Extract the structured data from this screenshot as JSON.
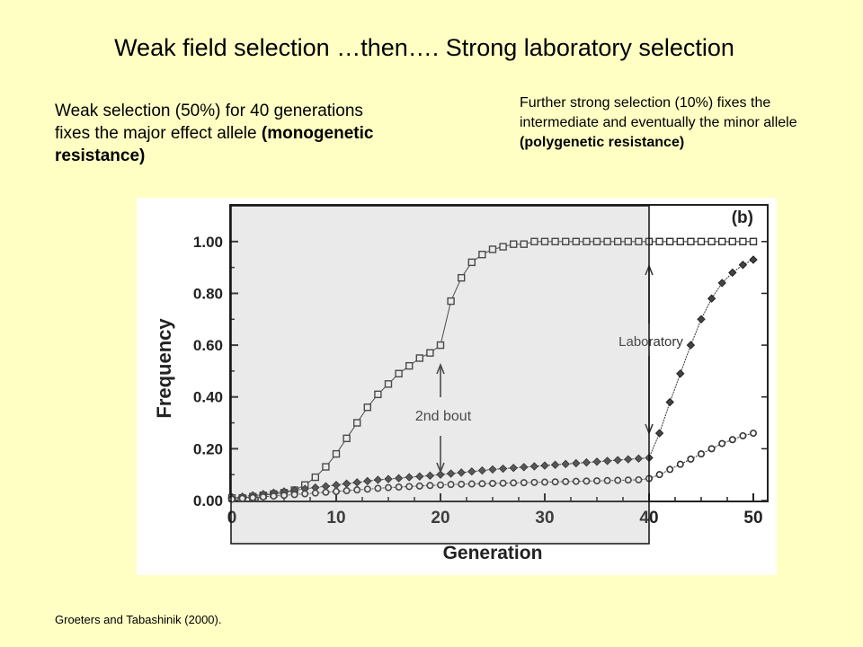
{
  "slide": {
    "title": "Weak field selection …then…. Strong laboratory selection",
    "left_note": "Weak selection (50%) for 40 generations fixes the major effect allele ",
    "left_note_bold": "(monogenetic resistance)",
    "right_note": "Further strong selection (10%) fixes the intermediate and eventually the minor allele ",
    "right_note_bold": "(polygenetic resistance)",
    "credit": "Groeters and Tabashinik (2000)."
  },
  "chart_data": {
    "type": "line",
    "panel_label": "(b)",
    "xlabel": "Generation",
    "ylabel": "Frequency",
    "xlim": [
      0,
      50
    ],
    "ylim": [
      0,
      1.1
    ],
    "xticks": [
      0,
      10,
      20,
      30,
      40,
      50
    ],
    "yticks": [
      0.0,
      0.2,
      0.4,
      0.6,
      0.8,
      1.0
    ],
    "ytick_labels": [
      "0.00",
      "0.20",
      "0.40",
      "0.60",
      "0.80",
      "1.00"
    ],
    "annotations": {
      "second_bout": "2nd bout",
      "laboratory": "Laboratory"
    },
    "series": [
      {
        "marker": "square",
        "x": [
          0,
          1,
          2,
          3,
          4,
          5,
          6,
          7,
          8,
          9,
          10,
          11,
          12,
          13,
          14,
          15,
          16,
          17,
          18,
          19,
          20,
          21,
          22,
          23,
          24,
          25,
          26,
          27,
          28,
          29,
          30,
          31,
          32,
          33,
          34,
          35,
          36,
          37,
          38,
          39,
          40,
          41,
          42,
          43,
          44,
          45,
          46,
          47,
          48,
          49,
          50
        ],
        "y": [
          0.01,
          0.01,
          0.015,
          0.02,
          0.025,
          0.03,
          0.04,
          0.06,
          0.09,
          0.13,
          0.18,
          0.24,
          0.3,
          0.36,
          0.41,
          0.45,
          0.49,
          0.52,
          0.55,
          0.57,
          0.6,
          0.77,
          0.86,
          0.92,
          0.95,
          0.97,
          0.98,
          0.99,
          0.99,
          1.0,
          1.0,
          1.0,
          1.0,
          1.0,
          1.0,
          1.0,
          1.0,
          1.0,
          1.0,
          1.0,
          1.0,
          1.0,
          1.0,
          1.0,
          1.0,
          1.0,
          1.0,
          1.0,
          1.0,
          1.0,
          1.0
        ]
      },
      {
        "marker": "filled-diamond",
        "x": [
          0,
          1,
          2,
          3,
          4,
          5,
          6,
          7,
          8,
          9,
          10,
          11,
          12,
          13,
          14,
          15,
          16,
          17,
          18,
          19,
          20,
          21,
          22,
          23,
          24,
          25,
          26,
          27,
          28,
          29,
          30,
          31,
          32,
          33,
          34,
          35,
          36,
          37,
          38,
          39,
          40,
          41,
          42,
          43,
          44,
          45,
          46,
          47,
          48,
          49,
          50
        ],
        "y": [
          0.01,
          0.015,
          0.02,
          0.025,
          0.03,
          0.035,
          0.04,
          0.045,
          0.05,
          0.055,
          0.06,
          0.065,
          0.07,
          0.075,
          0.08,
          0.083,
          0.086,
          0.09,
          0.093,
          0.096,
          0.1,
          0.104,
          0.108,
          0.112,
          0.116,
          0.12,
          0.123,
          0.126,
          0.129,
          0.132,
          0.135,
          0.138,
          0.141,
          0.144,
          0.147,
          0.15,
          0.153,
          0.156,
          0.159,
          0.162,
          0.165,
          0.26,
          0.38,
          0.49,
          0.6,
          0.7,
          0.78,
          0.84,
          0.88,
          0.91,
          0.93
        ]
      },
      {
        "marker": "open-circle",
        "x": [
          0,
          1,
          2,
          3,
          4,
          5,
          6,
          7,
          8,
          9,
          10,
          11,
          12,
          13,
          14,
          15,
          16,
          17,
          18,
          19,
          20,
          21,
          22,
          23,
          24,
          25,
          26,
          27,
          28,
          29,
          30,
          31,
          32,
          33,
          34,
          35,
          36,
          37,
          38,
          39,
          40,
          41,
          42,
          43,
          44,
          45,
          46,
          47,
          48,
          49,
          50
        ],
        "y": [
          0.005,
          0.008,
          0.011,
          0.014,
          0.017,
          0.02,
          0.023,
          0.026,
          0.029,
          0.032,
          0.035,
          0.038,
          0.041,
          0.044,
          0.047,
          0.05,
          0.052,
          0.054,
          0.056,
          0.058,
          0.06,
          0.062,
          0.063,
          0.064,
          0.065,
          0.066,
          0.067,
          0.068,
          0.069,
          0.07,
          0.071,
          0.072,
          0.073,
          0.074,
          0.075,
          0.076,
          0.077,
          0.078,
          0.079,
          0.08,
          0.085,
          0.1,
          0.12,
          0.14,
          0.16,
          0.18,
          0.2,
          0.22,
          0.235,
          0.25,
          0.26
        ]
      }
    ]
  }
}
